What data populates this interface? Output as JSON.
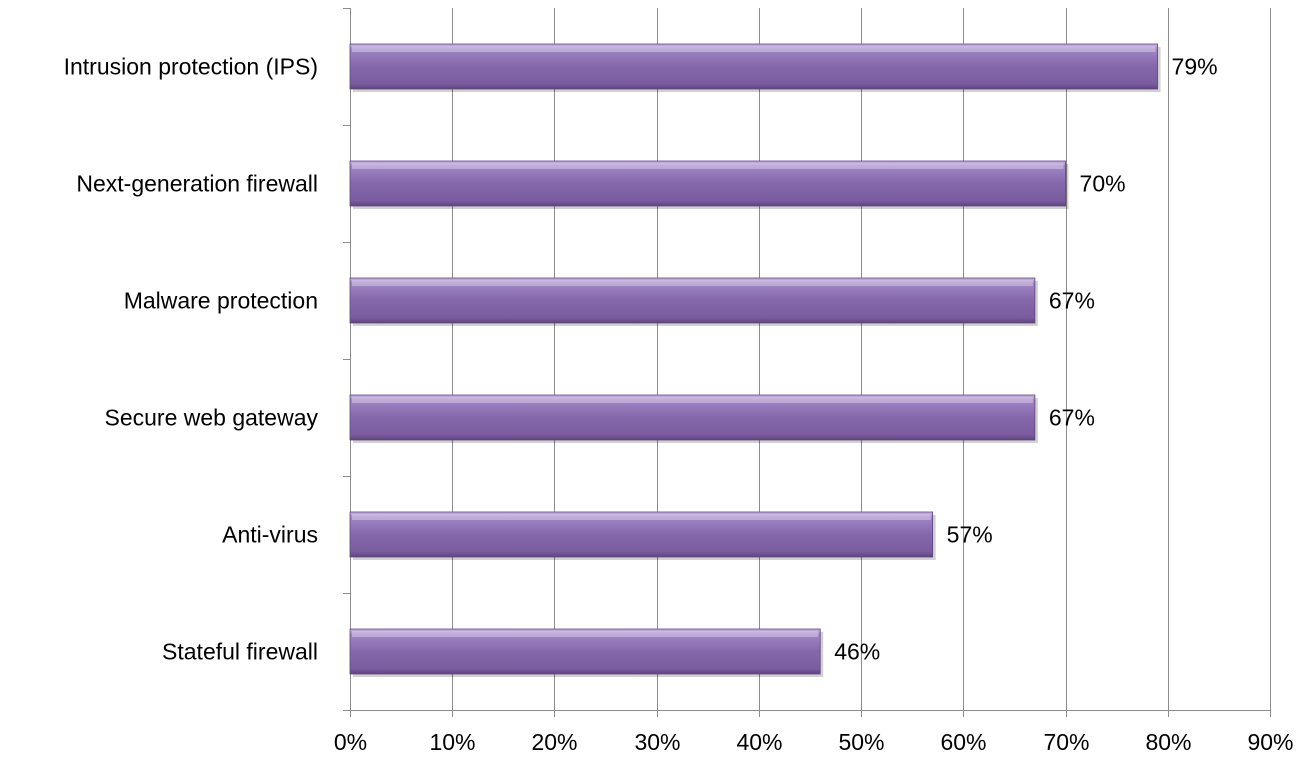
{
  "chart_data": {
    "type": "bar",
    "orientation": "horizontal",
    "categories": [
      "Intrusion protection (IPS)",
      "Next-generation firewall",
      "Malware protection",
      "Secure web gateway",
      "Anti-virus",
      "Stateful firewall"
    ],
    "values": [
      79,
      70,
      67,
      67,
      57,
      46
    ],
    "data_labels": [
      "79%",
      "70%",
      "67%",
      "67%",
      "57%",
      "46%"
    ],
    "xlim": [
      0,
      90
    ],
    "x_ticks": [
      0,
      10,
      20,
      30,
      40,
      50,
      60,
      70,
      80,
      90
    ],
    "x_tick_labels": [
      "0%",
      "10%",
      "20%",
      "30%",
      "40%",
      "50%",
      "60%",
      "70%",
      "80%",
      "90%"
    ],
    "grid": "vertical",
    "legend": "none",
    "bar_color": "#8064A2"
  }
}
